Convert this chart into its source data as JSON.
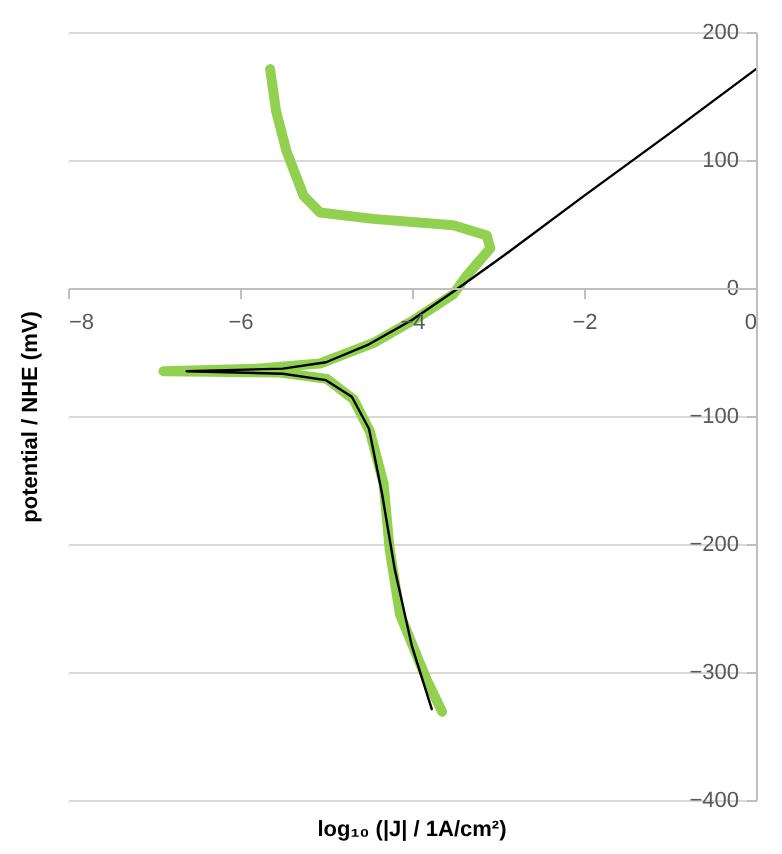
{
  "chart_data": {
    "type": "line",
    "xlabel": "log₁₀ (|J| / 1A/cm²)",
    "ylabel": "potential / NHE (mV)",
    "xlim": [
      -8,
      0
    ],
    "xticks": [
      -8,
      -6,
      -4,
      -2,
      0
    ],
    "ylim": [
      -400,
      200
    ],
    "yticks": [
      -400,
      -300,
      -200,
      -100,
      0,
      100,
      200
    ],
    "grid": "y",
    "marker": "none",
    "line_style": "solid",
    "series": [
      {
        "color": "#92d050",
        "x": [
          -3.65,
          -3.83,
          -4.14,
          -4.26,
          -4.33,
          -4.49,
          -4.68,
          -4.99,
          -5.53,
          -6.89,
          -5.8,
          -5.07,
          -4.45,
          -3.98,
          -3.52,
          -3.36,
          -3.09,
          -3.13,
          -3.52,
          -4.45,
          -5.07,
          -5.26,
          -5.46,
          -5.58,
          -5.65
        ],
        "values": [
          -331,
          -306,
          -255,
          -204,
          -153,
          -112,
          -87,
          -71,
          -66,
          -65,
          -63,
          -59,
          -43,
          -25,
          -5,
          10,
          31,
          41,
          49,
          54,
          59,
          72,
          107,
          138,
          171
        ]
      },
      {
        "color": "#000000",
        "x": [
          -3.77,
          -4.0,
          -4.2,
          -4.35,
          -4.5,
          -4.7,
          -5.0,
          -5.5,
          -6.62,
          -5.5,
          -5.0,
          -4.5,
          -4.0,
          -3.5,
          -3.0,
          -2,
          -1,
          0
        ],
        "values": [
          -329,
          -280,
          -220,
          -160,
          -110,
          -85,
          -72,
          -67,
          -65,
          -63,
          -58,
          -44,
          -25,
          -2,
          22,
          72,
          121,
          171
        ]
      }
    ]
  }
}
